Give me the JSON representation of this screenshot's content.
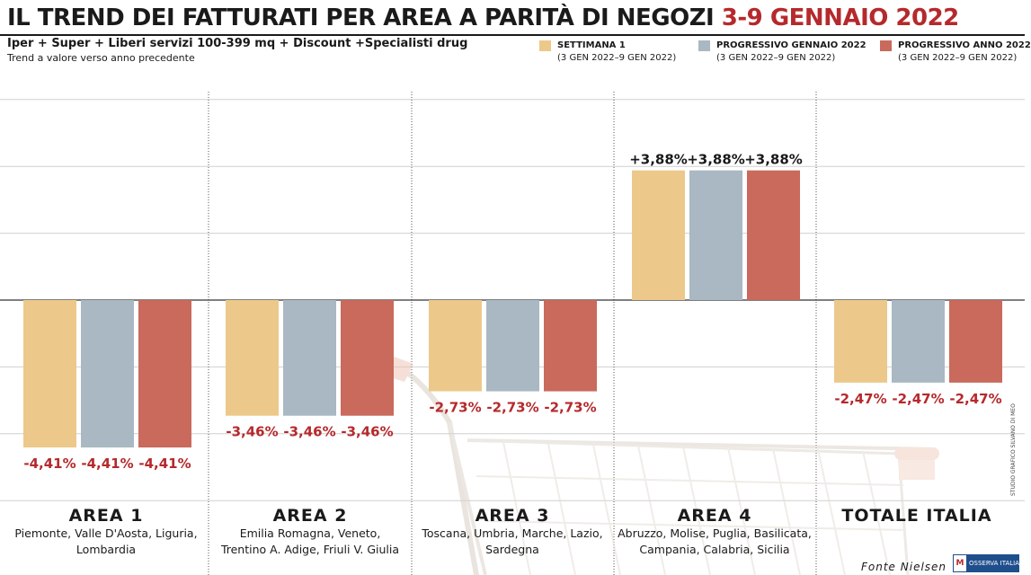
{
  "title": {
    "main": "IL TREND DEI FATTURATI PER AREA A PARITÀ DI NEGOZI",
    "date": "3-9 GENNAIO 2022"
  },
  "subtitle": "Iper + Super + Liberi servizi 100-399 mq + Discount +Specialisti drug",
  "subnote": "Trend a valore verso anno precedente",
  "legend": [
    {
      "name": "SETTIMANA 1",
      "range": "(3 GEN 2022–9 GEN 2022)",
      "color": "#ecc98a"
    },
    {
      "name": "PROGRESSIVO GENNAIO 2022",
      "range": "(3 GEN 2022–9 GEN 2022)",
      "color": "#a9b8c2"
    },
    {
      "name": "PROGRESSIVO ANNO 2022",
      "range": "(3 GEN 2022–9 GEN 2022)",
      "color": "#c96a5c"
    }
  ],
  "colors": {
    "positive_label": "#1a1a1a",
    "negative_label": "#b5292c",
    "background_icon": "shopping-cart-icon"
  },
  "chart_data": {
    "type": "bar",
    "categories": [
      "AREA 1",
      "AREA 2",
      "AREA 3",
      "AREA 4",
      "TOTALE ITALIA"
    ],
    "category_regions": [
      "Piemonte, Valle D'Aosta, Liguria, Lombardia",
      "Emilia Romagna, Veneto, Trentino A. Adige, Friuli V. Giulia",
      "Toscana, Umbria, Marche, Lazio, Sardegna",
      "Abruzzo, Molise, Puglia, Basilicata, Campania, Calabria, Sicilia",
      ""
    ],
    "series": [
      {
        "name": "SETTIMANA 1",
        "values": [
          -4.41,
          -3.46,
          -2.73,
          3.88,
          -2.47
        ]
      },
      {
        "name": "PROGRESSIVO GENNAIO 2022",
        "values": [
          -4.41,
          -3.46,
          -2.73,
          3.88,
          -2.47
        ]
      },
      {
        "name": "PROGRESSIVO ANNO 2022",
        "values": [
          -4.41,
          -3.46,
          -2.73,
          3.88,
          -2.47
        ]
      }
    ],
    "data_labels": [
      [
        "-4,41%",
        "-3,46%",
        "-2,73%",
        "+3,88%",
        "-2,47%"
      ],
      [
        "-4,41%",
        "-3,46%",
        "-2,73%",
        "+3,88%",
        "-2,47%"
      ],
      [
        "-4,41%",
        "-3,46%",
        "-2,73%",
        "+3,88%",
        "-2,47%"
      ]
    ],
    "ylim": [
      -6,
      6
    ],
    "grid": true,
    "legend_position": "top-right"
  },
  "source": "Fonte Nielsen",
  "credit": "STUDIO GRAFICO SILVANO DI MEO",
  "logo": {
    "mark": "M",
    "text": "OSSERVA ITALIA"
  }
}
